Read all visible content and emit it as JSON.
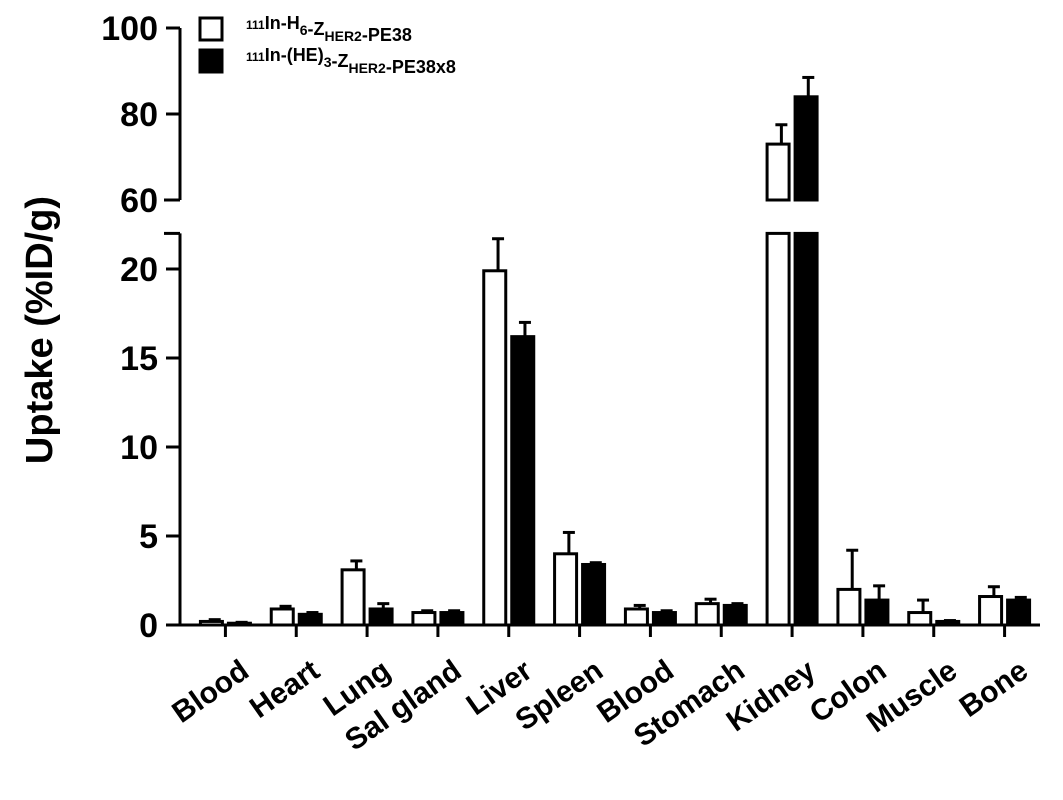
{
  "chart_data": {
    "type": "bar",
    "title": "",
    "xlabel": "",
    "ylabel": "Uptake (%ID/g)",
    "categories": [
      "Blood",
      "Heart",
      "Lung",
      "Sal gland",
      "Liver",
      "Spleen",
      "Blood",
      "Stomach",
      "Kidney",
      "Colon",
      "Muscle",
      "Bone"
    ],
    "y_axis_break": {
      "lower_range": [
        0,
        22
      ],
      "upper_range": [
        60,
        100
      ],
      "lower_ticks": [
        0,
        5,
        10,
        15,
        20
      ],
      "upper_ticks": [
        60,
        80,
        100
      ]
    },
    "series": [
      {
        "name": "111In-H6-ZHER2-PE38",
        "label_parts": [
          {
            "t": "111",
            "s": "sup"
          },
          {
            "t": "In-H",
            "s": ""
          },
          {
            "t": "6",
            "s": "sub"
          },
          {
            "t": "-Z",
            "s": ""
          },
          {
            "t": "HER2",
            "s": "sub"
          },
          {
            "t": "-PE38",
            "s": ""
          }
        ],
        "fill": "#ffffff",
        "values": [
          0.2,
          0.9,
          3.1,
          0.7,
          19.9,
          4.0,
          0.9,
          1.2,
          73,
          2.0,
          0.7,
          1.6
        ],
        "errors": [
          0.1,
          0.15,
          0.5,
          0.1,
          1.8,
          1.2,
          0.2,
          0.25,
          4.5,
          2.2,
          0.7,
          0.55
        ]
      },
      {
        "name": "111In-(HE)3-ZHER2-PE38x8",
        "label_parts": [
          {
            "t": "111",
            "s": "sup"
          },
          {
            "t": "In-(HE)",
            "s": ""
          },
          {
            "t": "3",
            "s": "sub"
          },
          {
            "t": "-Z",
            "s": ""
          },
          {
            "t": "HER2",
            "s": "sub"
          },
          {
            "t": "-PE38x8",
            "s": ""
          }
        ],
        "fill": "#000000",
        "values": [
          0.1,
          0.6,
          0.9,
          0.7,
          16.2,
          3.4,
          0.7,
          1.1,
          84,
          1.4,
          0.2,
          1.4
        ],
        "errors": [
          0.05,
          0.1,
          0.3,
          0.1,
          0.8,
          0.1,
          0.1,
          0.1,
          4.5,
          0.8,
          0.05,
          0.15
        ]
      }
    ],
    "legend_position": "top-left",
    "grid": false
  }
}
